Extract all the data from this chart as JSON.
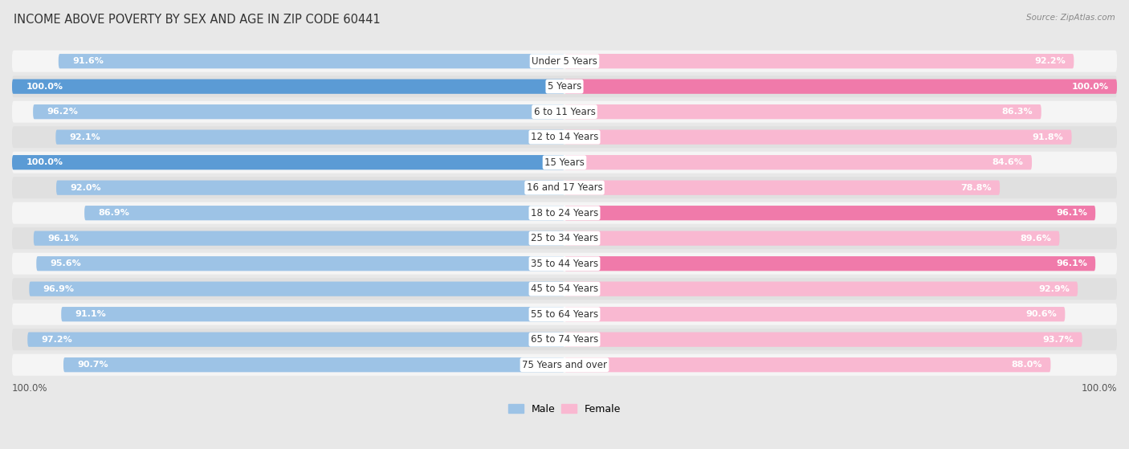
{
  "title": "INCOME ABOVE POVERTY BY SEX AND AGE IN ZIP CODE 60441",
  "source": "Source: ZipAtlas.com",
  "categories": [
    "Under 5 Years",
    "5 Years",
    "6 to 11 Years",
    "12 to 14 Years",
    "15 Years",
    "16 and 17 Years",
    "18 to 24 Years",
    "25 to 34 Years",
    "35 to 44 Years",
    "45 to 54 Years",
    "55 to 64 Years",
    "65 to 74 Years",
    "75 Years and over"
  ],
  "male_values": [
    91.6,
    100.0,
    96.2,
    92.1,
    100.0,
    92.0,
    86.9,
    96.1,
    95.6,
    96.9,
    91.1,
    97.2,
    90.7
  ],
  "female_values": [
    92.2,
    100.0,
    86.3,
    91.8,
    84.6,
    78.8,
    96.1,
    89.6,
    96.1,
    92.9,
    90.6,
    93.7,
    88.0
  ],
  "male_color_dark": "#5b9bd5",
  "male_color_light": "#9dc3e6",
  "female_color_dark": "#f07aaa",
  "female_color_light": "#f9b8d1",
  "bar_height": 0.58,
  "bg_color": "#e8e8e8",
  "row_color_light": "#f5f5f5",
  "row_color_dark": "#e0e0e0",
  "title_fontsize": 10.5,
  "label_fontsize": 8.5,
  "value_fontsize": 8.0,
  "source_fontsize": 7.5,
  "axis_max": 100.0,
  "x_label": "100.0%"
}
